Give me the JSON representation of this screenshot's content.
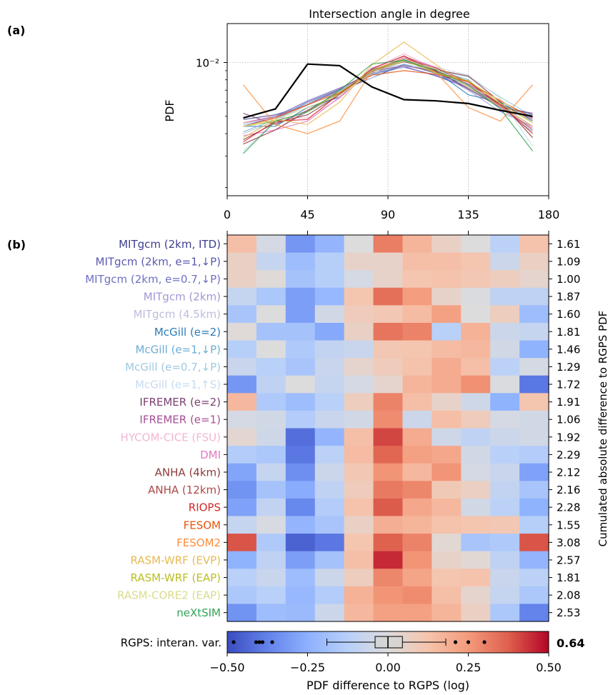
{
  "panel_labels": {
    "a": "(a)",
    "b": "(b)"
  },
  "chart_data": [
    {
      "type": "line",
      "title": "Intersection angle in degree",
      "ylabel": "PDF",
      "yscale": "log",
      "xlim": [
        0,
        180
      ],
      "ylim": [
        0.0018,
        0.0165
      ],
      "x_ticks": [
        "0",
        "45",
        "90",
        "135",
        "180"
      ],
      "y_tick_label": "10⁻²",
      "grid": true,
      "x": [
        9,
        27,
        45,
        63,
        81,
        99,
        117,
        135,
        153,
        171
      ],
      "rgps": [
        0.0049,
        0.0055,
        0.0098,
        0.0096,
        0.0073,
        0.0062,
        0.0061,
        0.0059,
        0.0054,
        0.005
      ],
      "model_series": [
        {
          "color": "#3e3f8f",
          "values": [
            0.0048,
            0.0051,
            0.0058,
            0.007,
            0.0082,
            0.0098,
            0.0087,
            0.0074,
            0.0058,
            0.0051
          ]
        },
        {
          "color": "#5a5ab0",
          "values": [
            0.0046,
            0.0049,
            0.006,
            0.0071,
            0.0087,
            0.0095,
            0.0084,
            0.0072,
            0.0057,
            0.0049
          ]
        },
        {
          "color": "#6f6fc4",
          "values": [
            0.0044,
            0.005,
            0.0061,
            0.0072,
            0.0086,
            0.0094,
            0.0085,
            0.0073,
            0.0058,
            0.005
          ]
        },
        {
          "color": "#9e9ad6",
          "values": [
            0.0035,
            0.0042,
            0.0053,
            0.0066,
            0.0093,
            0.0108,
            0.0088,
            0.007,
            0.0053,
            0.0044
          ]
        },
        {
          "color": "#bcbddc",
          "values": [
            0.004,
            0.0047,
            0.0058,
            0.0069,
            0.0086,
            0.0102,
            0.0093,
            0.0072,
            0.0058,
            0.0044
          ]
        },
        {
          "color": "#2c7bb6",
          "values": [
            0.0044,
            0.0044,
            0.0056,
            0.0064,
            0.0091,
            0.0104,
            0.0089,
            0.0066,
            0.006,
            0.0047
          ]
        },
        {
          "color": "#6baed6",
          "values": [
            0.0041,
            0.0048,
            0.0059,
            0.007,
            0.0085,
            0.0097,
            0.009,
            0.008,
            0.0056,
            0.0041
          ]
        },
        {
          "color": "#9ecae1",
          "values": [
            0.0045,
            0.005,
            0.0059,
            0.0071,
            0.0089,
            0.0098,
            0.009,
            0.0083,
            0.0064,
            0.005
          ]
        },
        {
          "color": "#c6dbef",
          "values": [
            0.0032,
            0.0047,
            0.0059,
            0.0068,
            0.0082,
            0.0095,
            0.0094,
            0.0085,
            0.0063,
            0.0034
          ]
        },
        {
          "color": "#7b4173",
          "values": [
            0.0052,
            0.0045,
            0.0054,
            0.0068,
            0.0088,
            0.0103,
            0.009,
            0.0071,
            0.0056,
            0.0052
          ]
        },
        {
          "color": "#a55194",
          "values": [
            0.0046,
            0.005,
            0.0058,
            0.0071,
            0.0089,
            0.0096,
            0.0089,
            0.0076,
            0.0058,
            0.0048
          ]
        },
        {
          "color": "#f2b6d2",
          "values": [
            0.0046,
            0.0049,
            0.0049,
            0.0063,
            0.0092,
            0.0112,
            0.0091,
            0.0074,
            0.0059,
            0.0046
          ]
        },
        {
          "color": "#e377c2",
          "values": [
            0.0039,
            0.0042,
            0.0047,
            0.0064,
            0.0093,
            0.0108,
            0.0094,
            0.0075,
            0.0056,
            0.0043
          ]
        },
        {
          "color": "#8c3b3b",
          "values": [
            0.0037,
            0.0046,
            0.0051,
            0.0066,
            0.009,
            0.0101,
            0.0091,
            0.0084,
            0.006,
            0.0038
          ]
        },
        {
          "color": "#ad494a",
          "values": [
            0.0035,
            0.0042,
            0.0054,
            0.0067,
            0.009,
            0.0106,
            0.0093,
            0.0078,
            0.0057,
            0.0042
          ]
        },
        {
          "color": "#d62728",
          "values": [
            0.0036,
            0.0047,
            0.0048,
            0.0067,
            0.0092,
            0.0109,
            0.0089,
            0.0078,
            0.0058,
            0.004
          ]
        },
        {
          "color": "#e6550d",
          "values": [
            0.0044,
            0.0049,
            0.0058,
            0.0068,
            0.0085,
            0.009,
            0.0086,
            0.0078,
            0.0061,
            0.0049
          ]
        },
        {
          "color": "#fd8d3c",
          "values": [
            0.0075,
            0.0045,
            0.004,
            0.0047,
            0.009,
            0.0106,
            0.0088,
            0.0056,
            0.0047,
            0.0075
          ]
        },
        {
          "color": "#e7ba52",
          "values": [
            0.0038,
            0.0048,
            0.0045,
            0.006,
            0.0097,
            0.013,
            0.0097,
            0.0073,
            0.0057,
            0.0044
          ]
        },
        {
          "color": "#bcbd22",
          "values": [
            0.0044,
            0.0047,
            0.0053,
            0.0068,
            0.009,
            0.0103,
            0.0087,
            0.0079,
            0.0059,
            0.0046
          ]
        },
        {
          "color": "#dbdb8d",
          "values": [
            0.0044,
            0.0048,
            0.0056,
            0.0066,
            0.0088,
            0.0102,
            0.0092,
            0.0073,
            0.0062,
            0.0046
          ]
        },
        {
          "color": "#31a354",
          "values": [
            0.0031,
            0.0047,
            0.0053,
            0.007,
            0.0098,
            0.0103,
            0.009,
            0.0075,
            0.0055,
            0.0032
          ]
        }
      ]
    },
    {
      "type": "heatmap",
      "xlabel": "PDF difference to RGPS (log)",
      "ylabel": "Cumulated absolute difference to RGPS PDF",
      "colorbar": {
        "min": -0.5,
        "max": 0.5,
        "ticks": [
          "−0.50",
          "−0.25",
          "0.00",
          "0.25",
          "0.50"
        ],
        "colormap": "coolwarm"
      },
      "rows": [
        {
          "label": "MITgcm (2km, ITD)",
          "color": "#3e3f8f",
          "total": "1.61",
          "values": [
            0.14,
            -0.03,
            -0.32,
            -0.23,
            0.0,
            0.31,
            0.17,
            0.06,
            0.0,
            -0.11,
            0.13
          ]
        },
        {
          "label": "MITgcm (2km, e=1,↓P)",
          "color": "#5a5ab0",
          "total": "1.09",
          "values": [
            0.06,
            -0.08,
            -0.2,
            -0.13,
            0.05,
            0.05,
            0.14,
            0.14,
            0.12,
            -0.06,
            0.07
          ]
        },
        {
          "label": "MITgcm (2km, e=0.7,↓P)",
          "color": "#6f6fc4",
          "total": "1.00",
          "values": [
            0.06,
            0.01,
            -0.18,
            -0.13,
            -0.03,
            0.05,
            0.12,
            0.13,
            0.11,
            0.08,
            0.04
          ]
        },
        {
          "label": "MITgcm (2km)",
          "color": "#9e9ad6",
          "total": "1.87",
          "values": [
            -0.08,
            -0.16,
            -0.3,
            -0.22,
            0.12,
            0.34,
            0.24,
            0.05,
            -0.01,
            -0.1,
            -0.1
          ]
        },
        {
          "label": "MITgcm (4.5km)",
          "color": "#bcbddc",
          "total": "1.60",
          "values": [
            -0.17,
            0.0,
            -0.3,
            -0.04,
            0.09,
            0.11,
            0.15,
            0.23,
            0.0,
            0.08,
            -0.2
          ]
        },
        {
          "label": "McGill (e=2)",
          "color": "#2c7bb6",
          "total": "1.81",
          "values": [
            0.01,
            -0.18,
            -0.18,
            -0.27,
            0.06,
            0.33,
            0.3,
            -0.12,
            0.18,
            -0.06,
            -0.08
          ]
        },
        {
          "label": "McGill (e=1,↓P)",
          "color": "#6baed6",
          "total": "1.46",
          "values": [
            -0.13,
            0.0,
            -0.15,
            -0.09,
            -0.07,
            0.11,
            0.12,
            0.15,
            0.16,
            -0.04,
            -0.24
          ]
        },
        {
          "label": "McGill (e=0.7,↓P)",
          "color": "#9ecae1",
          "total": "1.29",
          "values": [
            -0.07,
            -0.12,
            -0.17,
            -0.07,
            0.04,
            0.09,
            0.13,
            0.2,
            0.14,
            -0.11,
            -0.03
          ]
        },
        {
          "label": "McGill (e=1,↑S)",
          "color": "#c6dbef",
          "total": "1.72",
          "values": [
            -0.32,
            -0.1,
            0.0,
            -0.08,
            -0.03,
            0.04,
            0.17,
            0.2,
            0.27,
            -0.01,
            -0.4
          ]
        },
        {
          "label": "IFREMER (e=2)",
          "color": "#7b4173",
          "total": "1.91",
          "values": [
            0.16,
            -0.15,
            -0.2,
            -0.12,
            0.08,
            0.3,
            0.14,
            0.05,
            -0.05,
            -0.24,
            0.12
          ]
        },
        {
          "label": "IFREMER (e=1)",
          "color": "#a55194",
          "total": "1.06",
          "values": [
            -0.03,
            -0.04,
            -0.14,
            -0.07,
            -0.04,
            0.28,
            -0.06,
            0.14,
            0.09,
            -0.03,
            -0.04
          ]
        },
        {
          "label": "HYCOM-CICE (FSU)",
          "color": "#f2b6d2",
          "total": "1.92",
          "values": [
            0.03,
            -0.05,
            -0.42,
            -0.23,
            0.14,
            0.41,
            0.2,
            -0.05,
            -0.1,
            -0.06,
            -0.04
          ]
        },
        {
          "label": "DMI",
          "color": "#e377c2",
          "total": "2.29",
          "values": [
            -0.14,
            -0.16,
            -0.4,
            -0.11,
            0.15,
            0.36,
            0.23,
            0.21,
            -0.04,
            -0.12,
            -0.14
          ]
        },
        {
          "label": "ANHA (4km)",
          "color": "#8c3b3b",
          "total": "2.12",
          "values": [
            -0.28,
            -0.08,
            -0.34,
            -0.06,
            0.11,
            0.26,
            0.16,
            0.26,
            -0.03,
            -0.07,
            -0.29
          ]
        },
        {
          "label": "ANHA (12km)",
          "color": "#ad494a",
          "total": "2.16",
          "values": [
            -0.33,
            -0.18,
            -0.26,
            -0.1,
            0.09,
            0.32,
            0.29,
            0.1,
            0.07,
            -0.09,
            -0.17
          ]
        },
        {
          "label": "RIOPS",
          "color": "#d62728",
          "total": "2.28",
          "values": [
            -0.29,
            -0.09,
            -0.36,
            -0.14,
            0.13,
            0.38,
            0.21,
            0.16,
            -0.04,
            -0.11,
            -0.24
          ]
        },
        {
          "label": "FESOM",
          "color": "#e6550d",
          "total": "1.55",
          "values": [
            -0.08,
            -0.02,
            -0.23,
            -0.17,
            0.06,
            0.19,
            0.17,
            0.13,
            0.12,
            0.11,
            -0.13
          ]
        },
        {
          "label": "FESOM2",
          "color": "#fd8d3c",
          "total": "3.08",
          "values": [
            0.39,
            -0.15,
            -0.45,
            -0.4,
            0.12,
            0.37,
            0.3,
            0.02,
            -0.17,
            -0.15,
            0.39
          ]
        },
        {
          "label": "RASM-WRF (EVP)",
          "color": "#e7ba52",
          "total": "2.57",
          "values": [
            -0.24,
            -0.1,
            -0.3,
            -0.18,
            0.14,
            0.45,
            0.26,
            0.05,
            0.02,
            -0.1,
            -0.23
          ]
        },
        {
          "label": "RASM-WRF (EAP)",
          "color": "#bcbd22",
          "total": "1.81",
          "values": [
            -0.12,
            -0.07,
            -0.2,
            -0.06,
            0.08,
            0.29,
            0.22,
            0.12,
            0.13,
            -0.07,
            -0.11
          ]
        },
        {
          "label": "RASM-CORE2 (EAP)",
          "color": "#dbdb8d",
          "total": "2.08",
          "values": [
            -0.16,
            -0.12,
            -0.22,
            -0.14,
            0.18,
            0.26,
            0.28,
            0.14,
            0.04,
            -0.08,
            -0.16
          ]
        },
        {
          "label": "neXtSIM",
          "color": "#31a354",
          "total": "2.53",
          "values": [
            -0.33,
            -0.2,
            -0.21,
            -0.06,
            0.16,
            0.23,
            0.23,
            0.17,
            0.07,
            -0.16,
            -0.37
          ]
        }
      ],
      "interannual": {
        "label": "RGPS: interan. var.",
        "value": "0.64",
        "q1": -0.04,
        "median": 0.0,
        "q3": 0.045,
        "whisker_low": -0.19,
        "whisker_high": 0.18,
        "outliers": [
          -0.48,
          -0.41,
          -0.4,
          -0.39,
          -0.36,
          0.21,
          0.25,
          0.3
        ]
      }
    }
  ]
}
